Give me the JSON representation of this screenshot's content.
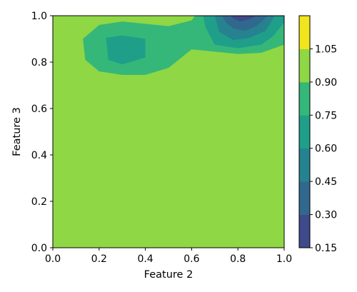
{
  "chart_data": {
    "type": "contour",
    "xlabel": "Feature 2",
    "ylabel": "Feature 3",
    "xlim": [
      0.0,
      1.0
    ],
    "ylim": [
      0.0,
      1.0
    ],
    "x_ticks": [
      "0.0",
      "0.2",
      "0.4",
      "0.6",
      "0.8",
      "1.0"
    ],
    "y_ticks": [
      "0.0",
      "0.2",
      "0.4",
      "0.6",
      "0.8",
      "1.0"
    ],
    "grid": false,
    "colormap": "viridis",
    "levels": [
      0.15,
      0.3,
      0.45,
      0.6,
      0.75,
      0.9,
      1.05
    ],
    "colorbar_ticks": [
      "0.15",
      "0.30",
      "0.45",
      "0.60",
      "0.75",
      "0.90",
      "1.05"
    ],
    "level_colors": [
      "#3e4a89",
      "#31688e",
      "#26828e",
      "#1f9e89",
      "#35b779",
      "#8fd744",
      "#f1e51d"
    ],
    "regions": [
      {
        "band": [
          0.9,
          1.05
        ],
        "polygon": [
          [
            0,
            0
          ],
          [
            1,
            0
          ],
          [
            1,
            1
          ],
          [
            0,
            1
          ]
        ]
      },
      {
        "band": [
          0.75,
          0.9
        ],
        "polygon": [
          [
            0.125,
            1.0
          ],
          [
            0.615,
            1.0
          ],
          [
            0.6,
            0.98
          ],
          [
            0.5,
            0.955
          ],
          [
            0.4,
            0.965
          ],
          [
            0.3,
            0.975
          ],
          [
            0.2,
            0.96
          ],
          [
            0.13,
            0.9
          ],
          [
            0.14,
            0.81
          ],
          [
            0.2,
            0.76
          ],
          [
            0.3,
            0.745
          ],
          [
            0.4,
            0.745
          ],
          [
            0.5,
            0.775
          ],
          [
            0.6,
            0.855
          ],
          [
            0.7,
            0.845
          ],
          [
            0.8,
            0.835
          ],
          [
            0.9,
            0.84
          ],
          [
            1.0,
            0.875
          ],
          [
            1.0,
            1.0
          ],
          [
            0.125,
            1.0
          ]
        ]
      },
      {
        "band": [
          0.6,
          0.75
        ],
        "polygon": [
          [
            0.23,
            0.905
          ],
          [
            0.3,
            0.915
          ],
          [
            0.4,
            0.9
          ],
          [
            0.4,
            0.82
          ],
          [
            0.3,
            0.79
          ],
          [
            0.24,
            0.81
          ],
          [
            0.23,
            0.905
          ]
        ]
      },
      {
        "band": [
          0.6,
          0.75
        ],
        "polygon": [
          [
            0.65,
            1.0
          ],
          [
            1.0,
            1.0
          ],
          [
            1.0,
            0.97
          ],
          [
            0.95,
            0.91
          ],
          [
            0.9,
            0.875
          ],
          [
            0.8,
            0.86
          ],
          [
            0.7,
            0.875
          ],
          [
            0.66,
            0.95
          ],
          [
            0.65,
            1.0
          ]
        ]
      },
      {
        "band": [
          0.45,
          0.6
        ],
        "polygon": [
          [
            0.7,
            1.0
          ],
          [
            0.96,
            1.0
          ],
          [
            0.92,
            0.935
          ],
          [
            0.85,
            0.905
          ],
          [
            0.78,
            0.895
          ],
          [
            0.72,
            0.93
          ],
          [
            0.7,
            1.0
          ]
        ]
      },
      {
        "band": [
          0.3,
          0.45
        ],
        "polygon": [
          [
            0.73,
            1.0
          ],
          [
            0.93,
            1.0
          ],
          [
            0.88,
            0.955
          ],
          [
            0.83,
            0.935
          ],
          [
            0.78,
            0.945
          ],
          [
            0.75,
            0.97
          ],
          [
            0.73,
            1.0
          ]
        ]
      },
      {
        "band": [
          0.15,
          0.3
        ],
        "polygon": [
          [
            0.77,
            1.0
          ],
          [
            0.88,
            1.0
          ],
          [
            0.85,
            0.985
          ],
          [
            0.81,
            0.975
          ],
          [
            0.78,
            0.988
          ],
          [
            0.77,
            1.0
          ]
        ]
      }
    ]
  }
}
